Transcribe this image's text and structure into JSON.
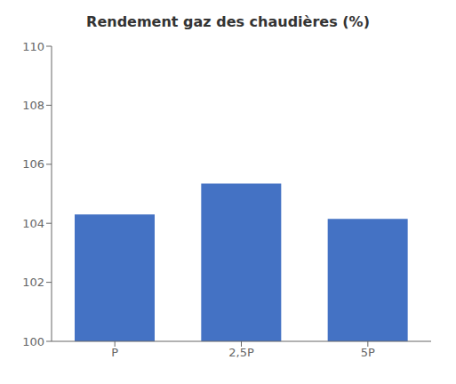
{
  "chart_data": {
    "type": "bar",
    "title": "Rendement gaz des chaudières (%)",
    "categories": [
      "P",
      "2,5P",
      "5P"
    ],
    "values": [
      104.3,
      105.35,
      104.15
    ],
    "color": "#4472C4",
    "ylim": [
      100,
      110
    ],
    "yticks": [
      100,
      102,
      104,
      106,
      108,
      110
    ],
    "grid": false
  }
}
